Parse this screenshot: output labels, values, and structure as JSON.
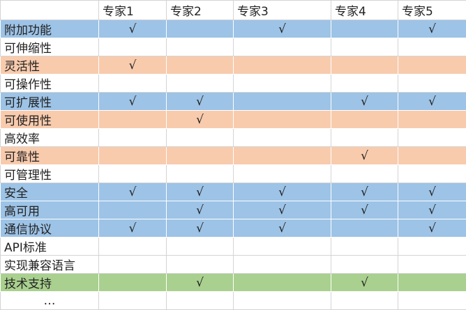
{
  "colors": {
    "blue": "#9dc3e6",
    "orange": "#f8cbad",
    "green": "#a9d08e"
  },
  "headers": [
    "",
    "专家1",
    "专家2",
    "专家3",
    "专家4",
    "专家5"
  ],
  "check_mark": "√",
  "rows": [
    {
      "label": "附加功能",
      "color": "blue",
      "checks": [
        true,
        false,
        true,
        false,
        true
      ]
    },
    {
      "label": "可伸缩性",
      "color": "",
      "checks": [
        false,
        false,
        false,
        false,
        false
      ]
    },
    {
      "label": "灵活性",
      "color": "orange",
      "checks": [
        true,
        false,
        false,
        false,
        false
      ]
    },
    {
      "label": "可操作性",
      "color": "",
      "checks": [
        false,
        false,
        false,
        false,
        false
      ]
    },
    {
      "label": "可扩展性",
      "color": "blue",
      "checks": [
        true,
        true,
        false,
        true,
        true
      ]
    },
    {
      "label": "可使用性",
      "color": "orange",
      "checks": [
        false,
        true,
        false,
        false,
        false
      ]
    },
    {
      "label": "高效率",
      "color": "",
      "checks": [
        false,
        false,
        false,
        false,
        false
      ]
    },
    {
      "label": "可靠性",
      "color": "orange",
      "checks": [
        false,
        false,
        false,
        true,
        false
      ]
    },
    {
      "label": "可管理性",
      "color": "",
      "checks": [
        false,
        false,
        false,
        false,
        false
      ]
    },
    {
      "label": "安全",
      "color": "blue",
      "checks": [
        true,
        true,
        true,
        true,
        true
      ]
    },
    {
      "label": "高可用",
      "color": "blue",
      "checks": [
        false,
        true,
        true,
        true,
        true
      ]
    },
    {
      "label": "通信协议",
      "color": "blue",
      "checks": [
        true,
        true,
        true,
        false,
        true
      ]
    },
    {
      "label": "API标准",
      "color": "",
      "checks": [
        false,
        false,
        false,
        false,
        false
      ]
    },
    {
      "label": "实现兼容语言",
      "color": "",
      "checks": [
        false,
        false,
        false,
        false,
        false
      ]
    },
    {
      "label": "技术支持",
      "color": "green",
      "checks": [
        false,
        true,
        false,
        true,
        false
      ]
    },
    {
      "label": "…",
      "color": "",
      "checks": [
        false,
        false,
        false,
        false,
        false
      ]
    }
  ]
}
